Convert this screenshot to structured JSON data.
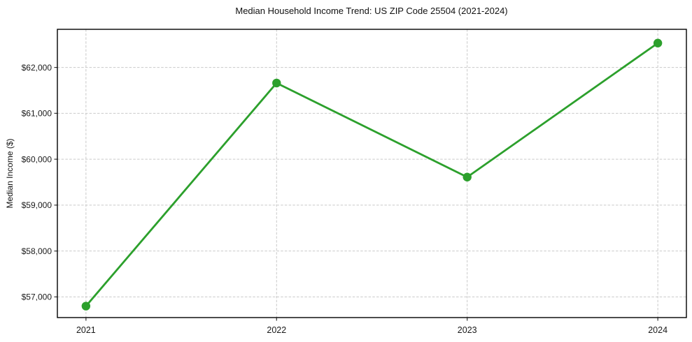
{
  "chart_data": {
    "type": "line",
    "title": "Median Household Income Trend: US ZIP Code 25504 (2021-2024)",
    "xlabel": "",
    "ylabel": "Median Income ($)",
    "x": [
      2021,
      2022,
      2023,
      2024
    ],
    "x_tick_labels": [
      "2021",
      "2022",
      "2023",
      "2024"
    ],
    "values": [
      56800,
      61660,
      59610,
      62530
    ],
    "y_ticks": [
      57000,
      58000,
      59000,
      60000,
      61000,
      62000
    ],
    "y_tick_labels": [
      "$57,000",
      "$58,000",
      "$59,000",
      "$60,000",
      "$61,000",
      "$62,000"
    ],
    "xlim": [
      2020.85,
      2024.15
    ],
    "ylim": [
      56550,
      62830
    ],
    "grid": true,
    "grid_style": "dashed",
    "grid_color": "#c9c9c9",
    "legend": false,
    "line_color": "#2ca02c",
    "marker": "circle",
    "background": "#ffffff",
    "frame_color": "#000000"
  }
}
